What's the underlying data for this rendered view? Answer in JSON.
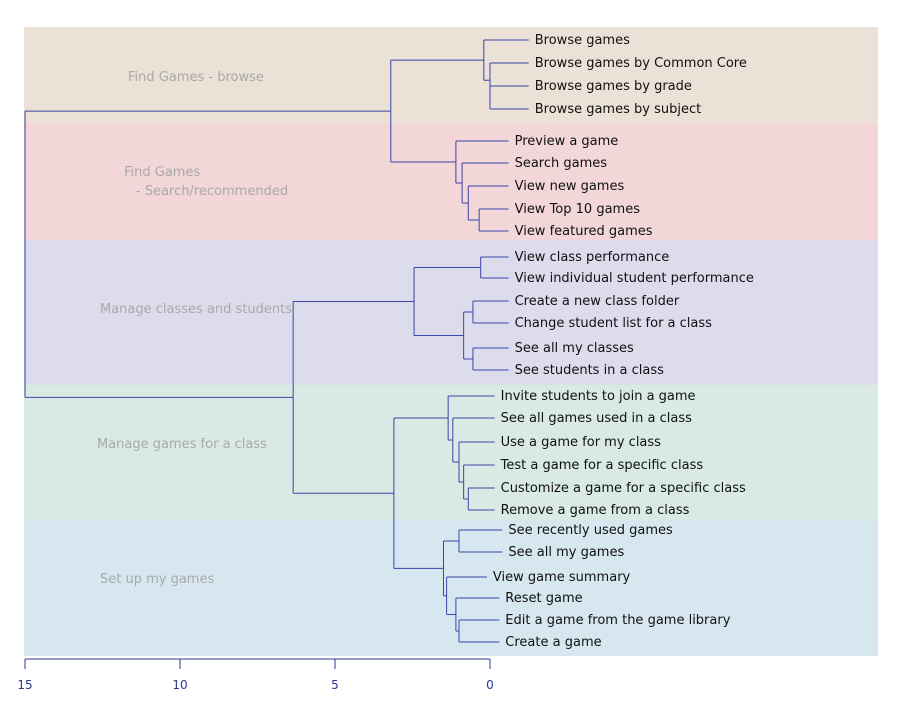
{
  "colors": {
    "line": "#3a46a8",
    "axis": "#2b3990",
    "group_label": "#a9a9a9",
    "leaf_label": "#111111",
    "bands": [
      "#ebe1d6",
      "#f2d6d8",
      "#dcdcec",
      "#d9e9e4",
      "#d7e7f0"
    ]
  },
  "groups": [
    {
      "label_lines": [
        "Find Games - browse"
      ],
      "color": "#ebe1d6"
    },
    {
      "label_lines": [
        "Find Games",
        "- Search/recommended"
      ],
      "color": "#f2d6d8"
    },
    {
      "label_lines": [
        "Manage classes and students"
      ],
      "color": "#dcdcec"
    },
    {
      "label_lines": [
        "Manage games for a class"
      ],
      "color": "#d9e9e4"
    },
    {
      "label_lines": [
        "Set up my games"
      ],
      "color": "#d7e7f0"
    }
  ],
  "leaves": [
    "Browse games",
    "Browse games by Common Core",
    "Browse games by grade",
    "Browse games by subject",
    "Preview a game",
    "Search games",
    "View new games",
    "View Top 10 games",
    "View featured games",
    "View class performance",
    "View individual student performance",
    "Create a new class folder",
    "Change student list for a class",
    "See all my classes",
    "See students in a class",
    "Invite students to join a game",
    "See all games used in a class",
    "Use a game for my class",
    "Test a game for a specific class",
    "Customize a game for a specific class",
    "Remove a game from a class",
    "See recently used games",
    "See all my games",
    "View game summary",
    "Reset game",
    "Edit a game from the game library",
    "Create a game"
  ],
  "axis": {
    "range": [
      15,
      0
    ],
    "ticks": [
      15,
      10,
      5,
      0
    ],
    "tick_labels": [
      "15",
      "10",
      "5",
      "0"
    ]
  },
  "tree": {
    "h": 15.0,
    "c": [
      {
        "h": 3.2,
        "c": [
          {
            "h": 0.2,
            "c": [
              {
                "l": 0,
                "h": -1.25
              },
              {
                "h": 0.0,
                "c": [
                  {
                    "l": 1,
                    "h": -1.25
                  },
                  {
                    "h": 0.0,
                    "c": [
                      {
                        "l": 2,
                        "h": -1.25
                      },
                      {
                        "l": 3,
                        "h": -1.25
                      }
                    ]
                  }
                ]
              }
            ]
          },
          {
            "h": 1.1,
            "c": [
              {
                "l": 4,
                "h": -0.6
              },
              {
                "h": 0.9,
                "c": [
                  {
                    "l": 5,
                    "h": -0.6
                  },
                  {
                    "h": 0.7,
                    "c": [
                      {
                        "l": 6,
                        "h": -0.6
                      },
                      {
                        "h": 0.35,
                        "c": [
                          {
                            "l": 7,
                            "h": -0.6
                          },
                          {
                            "l": 8,
                            "h": -0.6
                          }
                        ]
                      }
                    ]
                  }
                ]
              }
            ]
          }
        ]
      },
      {
        "h": 6.35,
        "c": [
          {
            "h": 2.45,
            "c": [
              {
                "h": 0.3,
                "c": [
                  {
                    "l": 9,
                    "h": -0.6
                  },
                  {
                    "l": 10,
                    "h": -0.6
                  }
                ]
              },
              {
                "h": 0.85,
                "c": [
                  {
                    "h": 0.55,
                    "c": [
                      {
                        "l": 11,
                        "h": -0.6
                      },
                      {
                        "l": 12,
                        "h": -0.6
                      }
                    ]
                  },
                  {
                    "h": 0.55,
                    "c": [
                      {
                        "l": 13,
                        "h": -0.6
                      },
                      {
                        "l": 14,
                        "h": -0.6
                      }
                    ]
                  }
                ]
              }
            ]
          },
          {
            "h": 3.1,
            "c": [
              {
                "h": 1.35,
                "c": [
                  {
                    "l": 15,
                    "h": -0.15
                  },
                  {
                    "h": 1.2,
                    "c": [
                      {
                        "l": 16,
                        "h": -0.15
                      },
                      {
                        "h": 1.0,
                        "c": [
                          {
                            "l": 17,
                            "h": -0.15
                          },
                          {
                            "h": 0.85,
                            "c": [
                              {
                                "l": 18,
                                "h": -0.15
                              },
                              {
                                "h": 0.7,
                                "c": [
                                  {
                                    "l": 19,
                                    "h": -0.15
                                  },
                                  {
                                    "l": 20,
                                    "h": -0.15
                                  }
                                ]
                              }
                            ]
                          }
                        ]
                      }
                    ]
                  }
                ]
              },
              {
                "h": 1.5,
                "c": [
                  {
                    "h": 1.0,
                    "c": [
                      {
                        "l": 21,
                        "h": -0.4
                      },
                      {
                        "l": 22,
                        "h": -0.4
                      }
                    ]
                  },
                  {
                    "h": 1.4,
                    "c": [
                      {
                        "l": 23,
                        "h": 0.1
                      },
                      {
                        "h": 1.1,
                        "c": [
                          {
                            "l": 24,
                            "h": -0.3
                          },
                          {
                            "h": 1.0,
                            "c": [
                              {
                                "l": 25,
                                "h": -0.3
                              },
                              {
                                "l": 26,
                                "h": -0.3
                              }
                            ]
                          }
                        ]
                      }
                    ]
                  }
                ]
              }
            ]
          }
        ]
      }
    ]
  }
}
